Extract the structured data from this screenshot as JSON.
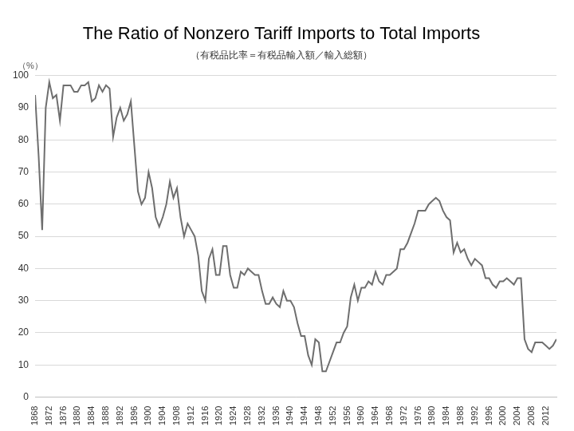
{
  "chart_data": {
    "type": "line",
    "title": "The Ratio of Nonzero Tariff Imports to Total Imports",
    "subtitle": "（有税品比率＝有税品輸入額／輸入総額）",
    "y_label": "（%）",
    "color": "#6e6e6e",
    "grid": true,
    "x": [
      1868,
      1869,
      1870,
      1871,
      1872,
      1873,
      1874,
      1875,
      1876,
      1877,
      1878,
      1879,
      1880,
      1881,
      1882,
      1883,
      1884,
      1885,
      1886,
      1887,
      1888,
      1889,
      1890,
      1891,
      1892,
      1893,
      1894,
      1895,
      1896,
      1897,
      1898,
      1899,
      1900,
      1901,
      1902,
      1903,
      1904,
      1905,
      1906,
      1907,
      1908,
      1909,
      1910,
      1911,
      1912,
      1913,
      1914,
      1915,
      1916,
      1917,
      1918,
      1919,
      1920,
      1921,
      1922,
      1923,
      1924,
      1925,
      1926,
      1927,
      1928,
      1929,
      1930,
      1931,
      1932,
      1933,
      1934,
      1935,
      1936,
      1937,
      1938,
      1939,
      1940,
      1941,
      1942,
      1943,
      1944,
      1945,
      1946,
      1947,
      1948,
      1949,
      1950,
      1951,
      1952,
      1953,
      1954,
      1955,
      1956,
      1957,
      1958,
      1959,
      1960,
      1961,
      1962,
      1963,
      1964,
      1965,
      1966,
      1967,
      1968,
      1969,
      1970,
      1971,
      1972,
      1973,
      1974,
      1975,
      1976,
      1977,
      1978,
      1979,
      1980,
      1981,
      1982,
      1983,
      1984,
      1985,
      1986,
      1987,
      1988,
      1989,
      1990,
      1991,
      1992,
      1993,
      1994,
      1995,
      1996,
      1997,
      1998,
      1999,
      2000,
      2001,
      2002,
      2003,
      2004,
      2005,
      2006,
      2007,
      2008,
      2009,
      2010,
      2011,
      2012,
      2013,
      2014,
      2015
    ],
    "values": [
      94,
      75,
      52,
      90,
      98,
      93,
      94,
      86,
      97,
      97,
      97,
      95,
      95,
      97,
      97,
      98,
      92,
      93,
      97,
      95,
      97,
      96,
      81,
      87,
      90,
      86,
      88,
      92,
      78,
      64,
      60,
      62,
      70,
      65,
      56,
      53,
      56,
      60,
      67,
      62,
      65,
      56,
      50,
      54,
      52,
      50,
      44,
      33,
      30,
      43,
      46,
      38,
      38,
      47,
      47,
      38,
      34,
      34,
      39,
      38,
      40,
      39,
      38,
      38,
      33,
      29,
      29,
      31,
      29,
      28,
      33,
      30,
      30,
      28,
      23,
      19,
      19,
      13,
      10,
      18,
      17,
      8,
      8,
      11,
      14,
      17,
      17,
      20,
      22,
      31,
      35,
      30,
      34,
      34,
      36,
      35,
      39,
      36,
      35,
      38,
      38,
      39,
      40,
      46,
      46,
      48,
      51,
      54,
      58,
      58,
      58,
      60,
      61,
      62,
      61,
      58,
      56,
      55,
      45,
      48,
      45,
      46,
      43,
      41,
      43,
      42,
      41,
      37,
      37,
      35,
      34,
      36,
      36,
      37,
      36,
      35,
      37,
      37,
      18,
      15,
      14,
      17,
      17,
      17,
      16,
      15,
      16,
      18
    ],
    "xlim": [
      1868,
      2015
    ],
    "xticks": [
      1868,
      1872,
      1876,
      1880,
      1884,
      1888,
      1892,
      1896,
      1900,
      1904,
      1908,
      1912,
      1916,
      1920,
      1924,
      1928,
      1932,
      1936,
      1940,
      1944,
      1948,
      1952,
      1956,
      1960,
      1964,
      1968,
      1972,
      1976,
      1980,
      1984,
      1988,
      1992,
      1996,
      2000,
      2004,
      2008,
      2012
    ],
    "ylim": [
      0,
      100
    ],
    "yticks": [
      0,
      10,
      20,
      30,
      40,
      50,
      60,
      70,
      80,
      90,
      100
    ]
  }
}
